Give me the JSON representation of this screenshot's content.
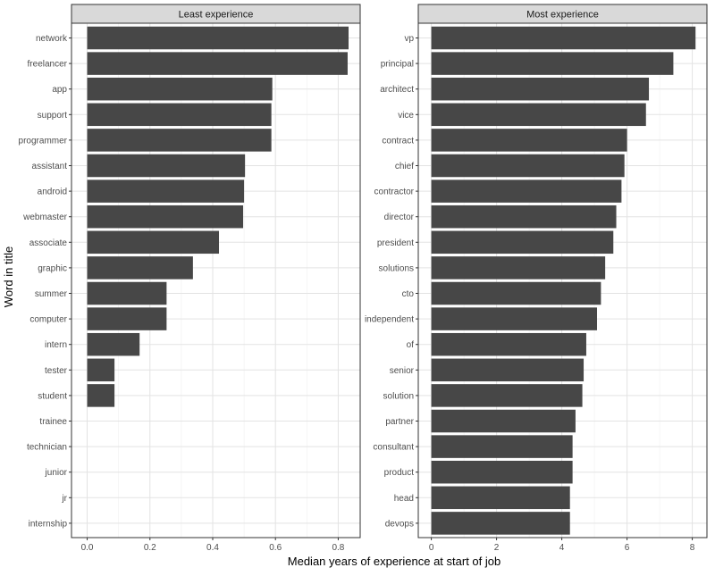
{
  "chart_data": {
    "type": "bar",
    "orientation": "horizontal",
    "xlabel": "Median years of experience at start of job",
    "ylabel": "Word in title",
    "grid": true,
    "panels": [
      {
        "title": "Least experience",
        "xlim": [
          -0.05,
          0.87
        ],
        "xticks": [
          0.0,
          0.2,
          0.4,
          0.6,
          0.8
        ],
        "xtick_labels": [
          "0.0",
          "0.2",
          "0.4",
          "0.6",
          "0.8"
        ],
        "categories": [
          "network",
          "freelancer",
          "app",
          "support",
          "programmer",
          "assistant",
          "android",
          "webmaster",
          "associate",
          "graphic",
          "summer",
          "computer",
          "intern",
          "tester",
          "student",
          "trainee",
          "technician",
          "junior",
          "jr",
          "internship"
        ],
        "values": [
          0.833,
          0.83,
          0.59,
          0.587,
          0.587,
          0.503,
          0.5,
          0.497,
          0.42,
          0.337,
          0.253,
          0.253,
          0.167,
          0.087,
          0.087,
          0,
          0,
          0,
          0,
          0
        ]
      },
      {
        "title": "Most experience",
        "xlim": [
          -0.4,
          8.45
        ],
        "xticks": [
          0,
          2,
          4,
          6,
          8
        ],
        "xtick_labels": [
          "0",
          "2",
          "4",
          "6",
          "8"
        ],
        "categories": [
          "vp",
          "principal",
          "architect",
          "vice",
          "contract",
          "chief",
          "contractor",
          "director",
          "president",
          "solutions",
          "cto",
          "independent",
          "of",
          "senior",
          "solution",
          "partner",
          "consultant",
          "product",
          "head",
          "devops"
        ],
        "values": [
          8.1,
          7.42,
          6.67,
          6.58,
          6.0,
          5.92,
          5.83,
          5.67,
          5.58,
          5.33,
          5.2,
          5.08,
          4.75,
          4.67,
          4.63,
          4.42,
          4.33,
          4.33,
          4.25,
          4.25
        ]
      }
    ]
  }
}
